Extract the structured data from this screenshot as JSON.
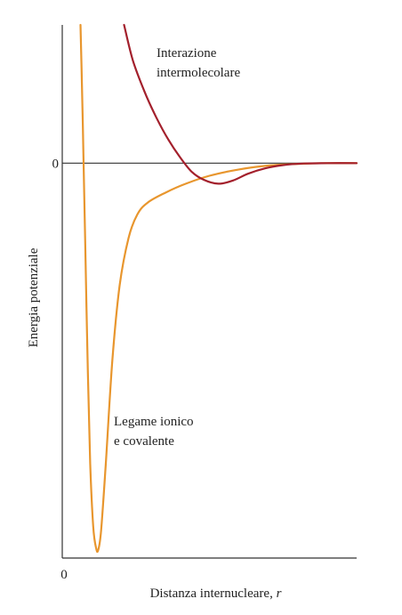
{
  "chart_data": {
    "type": "line",
    "title": "",
    "xlabel": "Distanza internucleare, r",
    "xlabel_main": "Distanza internucleare, ",
    "xlabel_var": "r",
    "ylabel": "Energia potenziale",
    "zero_label_y": "0",
    "zero_label_x": "0",
    "xlim": [
      0,
      10
    ],
    "ylim": [
      -10,
      3.5
    ],
    "grid": false,
    "series": [
      {
        "name": "Legame ionico e covalente",
        "label_lines": [
          "Legame ionico",
          "e covalente"
        ],
        "color": "#e8962e",
        "points": [
          [
            0.62,
            3.5
          ],
          [
            0.68,
            1.6
          ],
          [
            0.72,
            0.2
          ],
          [
            0.78,
            -2.0
          ],
          [
            0.86,
            -5.0
          ],
          [
            0.95,
            -7.6
          ],
          [
            1.05,
            -9.2
          ],
          [
            1.15,
            -9.75
          ],
          [
            1.22,
            -9.8
          ],
          [
            1.32,
            -9.3
          ],
          [
            1.48,
            -7.6
          ],
          [
            1.7,
            -5.0
          ],
          [
            1.95,
            -3.1
          ],
          [
            2.25,
            -1.9
          ],
          [
            2.55,
            -1.3
          ],
          [
            2.9,
            -1.0
          ],
          [
            3.5,
            -0.75
          ],
          [
            4.2,
            -0.52
          ],
          [
            5.0,
            -0.32
          ],
          [
            6.0,
            -0.16
          ],
          [
            7.0,
            -0.06
          ],
          [
            8.0,
            -0.02
          ],
          [
            9.0,
            0.0
          ],
          [
            10.0,
            0.0
          ]
        ]
      },
      {
        "name": "Interazione intermolecolare",
        "label_lines": [
          "Interazione",
          "intermolecolare"
        ],
        "color": "#a3202c",
        "points": [
          [
            2.1,
            3.5
          ],
          [
            2.4,
            2.6
          ],
          [
            2.8,
            1.8
          ],
          [
            3.2,
            1.15
          ],
          [
            3.6,
            0.6
          ],
          [
            4.0,
            0.15
          ],
          [
            4.4,
            -0.22
          ],
          [
            4.8,
            -0.42
          ],
          [
            5.3,
            -0.52
          ],
          [
            5.8,
            -0.44
          ],
          [
            6.3,
            -0.27
          ],
          [
            6.9,
            -0.13
          ],
          [
            7.5,
            -0.05
          ],
          [
            8.2,
            -0.01
          ],
          [
            9.0,
            0.0
          ],
          [
            10.0,
            0.0
          ]
        ]
      }
    ]
  }
}
